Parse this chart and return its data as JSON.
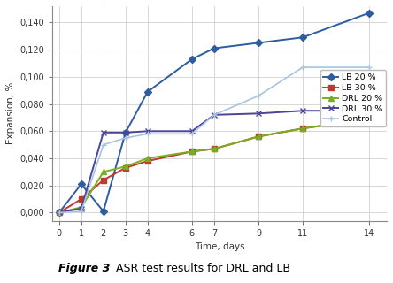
{
  "xlabel": "Time, days",
  "ylabel": "Expansion, %",
  "xlim": [
    -0.3,
    14.8
  ],
  "ylim": [
    -0.006,
    0.152
  ],
  "yticks": [
    0.0,
    0.02,
    0.04,
    0.06,
    0.08,
    0.1,
    0.12,
    0.14
  ],
  "xticks": [
    0,
    1,
    2,
    3,
    4,
    6,
    7,
    9,
    11,
    14
  ],
  "series": [
    {
      "label": "LB 20 %",
      "color": "#2E5D9F",
      "marker": "D",
      "linewidth": 1.4,
      "markersize": 4,
      "x": [
        0,
        1,
        2,
        3,
        4,
        6,
        7,
        9,
        11,
        14
      ],
      "y": [
        0.0,
        0.021,
        0.001,
        0.059,
        0.089,
        0.113,
        0.121,
        0.125,
        0.129,
        0.147
      ]
    },
    {
      "label": "LB 30 %",
      "color": "#C0392B",
      "marker": "s",
      "linewidth": 1.4,
      "markersize": 4,
      "x": [
        0,
        1,
        2,
        3,
        4,
        6,
        7,
        9,
        11,
        14
      ],
      "y": [
        0.0,
        0.01,
        0.024,
        0.033,
        0.038,
        0.045,
        0.047,
        0.056,
        0.062,
        0.069
      ]
    },
    {
      "label": "DRL 20 %",
      "color": "#7AAC22",
      "marker": "^",
      "linewidth": 1.4,
      "markersize": 4,
      "x": [
        0,
        1,
        2,
        3,
        4,
        6,
        7,
        9,
        11,
        14
      ],
      "y": [
        0.0,
        0.004,
        0.03,
        0.034,
        0.04,
        0.045,
        0.047,
        0.056,
        0.062,
        0.069
      ]
    },
    {
      "label": "DRL 30 %",
      "color": "#4B4499",
      "marker": "x",
      "linewidth": 1.4,
      "markersize": 5,
      "x": [
        0,
        1,
        2,
        3,
        4,
        6,
        7,
        9,
        11,
        14
      ],
      "y": [
        0.0,
        0.003,
        0.059,
        0.059,
        0.06,
        0.06,
        0.072,
        0.073,
        0.075,
        0.075
      ]
    },
    {
      "label": "Control",
      "color": "#A8C4E0",
      "marker": "+",
      "linewidth": 1.2,
      "markersize": 5,
      "x": [
        0,
        1,
        2,
        3,
        4,
        6,
        7,
        9,
        11,
        14
      ],
      "y": [
        0.0,
        0.001,
        0.05,
        0.055,
        0.058,
        0.058,
        0.072,
        0.086,
        0.107,
        0.107
      ]
    }
  ],
  "background_color": "#FFFFFF",
  "grid_color": "#D0D0D0",
  "legend_fontsize": 6.8,
  "axis_fontsize": 7.5,
  "tick_fontsize": 7.0,
  "fig_title_bold": "Figure 3",
  "fig_title_normal": "ASR test results for DRL and LB"
}
